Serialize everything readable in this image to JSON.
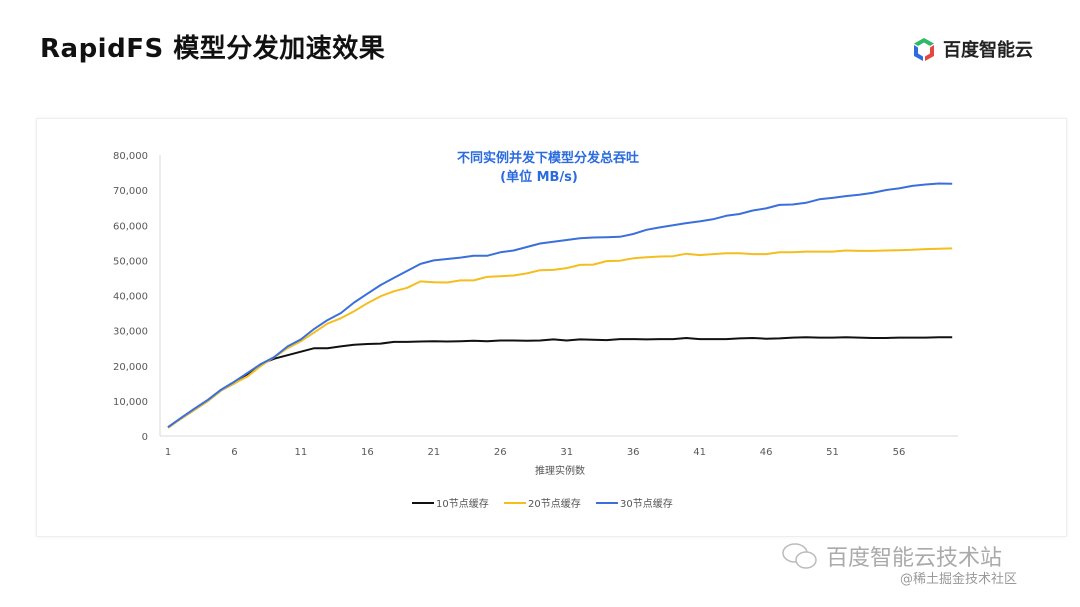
{
  "page_title": "RapidFS 模型分发加速效果",
  "logo_text": "百度智能云",
  "watermark": {
    "main": "百度智能云技术站",
    "sub": "@稀土掘金技术社区"
  },
  "chart_data": {
    "type": "line",
    "title": "不同实例并发下模型分发总吞吐",
    "subtitle": "(单位 MB/s)",
    "xlabel": "推理实例数",
    "ylabel": "",
    "x": [
      1,
      2,
      3,
      4,
      5,
      6,
      7,
      8,
      9,
      10,
      11,
      12,
      13,
      14,
      15,
      16,
      17,
      18,
      19,
      20,
      21,
      22,
      23,
      24,
      25,
      26,
      27,
      28,
      29,
      30,
      31,
      32,
      33,
      34,
      35,
      36,
      37,
      38,
      39,
      40,
      41,
      42,
      43,
      44,
      45,
      46,
      47,
      48,
      49,
      50,
      51,
      52,
      53,
      54,
      55,
      56,
      57,
      58,
      59,
      60
    ],
    "xticks": [
      "1",
      "6",
      "11",
      "16",
      "21",
      "26",
      "31",
      "36",
      "41",
      "46",
      "51",
      "56"
    ],
    "yticks": [
      "0",
      "10,000",
      "20,000",
      "30,000",
      "40,000",
      "50,000",
      "60,000",
      "70,000",
      "80,000"
    ],
    "ylim": [
      0,
      80000
    ],
    "grid": false,
    "legend_position": "bottom",
    "series": [
      {
        "name": "10节点缓存",
        "color": "#111111",
        "values": [
          2500,
          5000,
          7500,
          10000,
          13000,
          15000,
          17500,
          20500,
          22000,
          23000,
          24000,
          25000,
          25000,
          25500,
          26000,
          26200,
          26300,
          26800,
          26800,
          26900,
          27000,
          26900,
          27000,
          27100,
          27000,
          27200,
          27200,
          27100,
          27200,
          27500,
          27200,
          27500,
          27400,
          27300,
          27600,
          27600,
          27500,
          27600,
          27600,
          27900,
          27600,
          27600,
          27600,
          27800,
          27900,
          27700,
          27800,
          28000,
          28100,
          28000,
          28000,
          28100,
          28000,
          27900,
          27900,
          28000,
          28000,
          28000,
          28100,
          28100
        ]
      },
      {
        "name": "20节点缓存",
        "color": "#f5be1e",
        "values": [
          2300,
          5000,
          7500,
          10000,
          13000,
          15000,
          17000,
          20000,
          22500,
          25000,
          27000,
          29500,
          32000,
          33500,
          35500,
          37800,
          39800,
          41200,
          42200,
          44000,
          43800,
          43700,
          44300,
          44300,
          45300,
          45500,
          45700,
          46300,
          47200,
          47300,
          47800,
          48700,
          48800,
          49800,
          49900,
          50600,
          50900,
          51100,
          51200,
          51900,
          51500,
          51800,
          52000,
          52000,
          51800,
          51800,
          52300,
          52300,
          52500,
          52500,
          52500,
          52800,
          52700,
          52700,
          52800,
          52900,
          53000,
          53200,
          53300,
          53400
        ]
      },
      {
        "name": "30节点缓存",
        "color": "#3a6fdc",
        "values": [
          2500,
          5200,
          7800,
          10300,
          13200,
          15500,
          18000,
          20500,
          22500,
          25500,
          27500,
          30500,
          33000,
          35000,
          38000,
          40500,
          43000,
          45000,
          47000,
          49000,
          50000,
          50400,
          50800,
          51300,
          51300,
          52300,
          52800,
          53800,
          54800,
          55300,
          55800,
          56300,
          56500,
          56600,
          56700,
          57500,
          58700,
          59400,
          60000,
          60600,
          61100,
          61700,
          62700,
          63200,
          64200,
          64800,
          65800,
          65900,
          66400,
          67400,
          67800,
          68300,
          68700,
          69200,
          70000,
          70500,
          71200,
          71600,
          71900,
          71800
        ]
      }
    ]
  }
}
